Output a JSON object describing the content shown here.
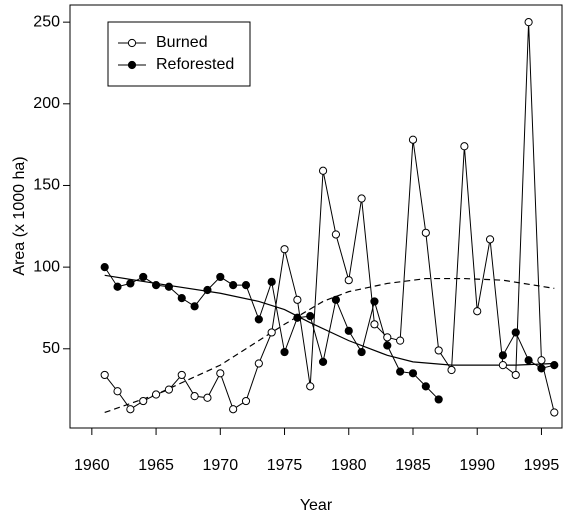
{
  "chart_data": {
    "type": "line",
    "x_label": "Year",
    "y_label": "Area (x 1000 ha)",
    "x": [
      1961,
      1962,
      1963,
      1964,
      1965,
      1966,
      1967,
      1968,
      1969,
      1970,
      1971,
      1972,
      1973,
      1974,
      1975,
      1976,
      1977,
      1978,
      1979,
      1980,
      1981,
      1982,
      1983,
      1984,
      1985,
      1986,
      1987,
      1988,
      1989,
      1990,
      1991,
      1992,
      1993,
      1994,
      1995,
      1996
    ],
    "series": [
      {
        "name": "Burned",
        "color": "#000000",
        "marker": "open",
        "values": [
          34,
          24,
          13,
          18,
          22,
          25,
          34,
          21,
          20,
          35,
          13,
          18,
          41,
          60,
          111,
          80,
          27,
          159,
          120,
          92,
          142,
          65,
          57,
          55,
          178,
          121,
          49,
          37,
          174,
          73,
          117,
          40,
          34,
          250,
          43,
          11
        ]
      },
      {
        "name": "Reforested",
        "color": "#000000",
        "marker": "filled",
        "values": [
          100,
          88,
          90,
          94,
          89,
          88,
          81,
          76,
          86,
          94,
          89,
          89,
          68,
          91,
          48,
          69,
          70,
          42,
          80,
          61,
          48,
          79,
          52,
          36,
          35,
          27,
          19,
          null,
          null,
          null,
          null,
          46,
          60,
          43,
          38,
          40
        ]
      }
    ],
    "trends": [
      {
        "linestyle": "solid",
        "color": "#000000",
        "x": [
          1961,
          1965,
          1970,
          1973,
          1975,
          1977,
          1980,
          1983,
          1985,
          1988,
          1990,
          1993,
          1996
        ],
        "values": [
          95,
          90,
          84,
          79,
          74,
          66,
          55,
          46,
          42,
          40,
          40,
          40,
          41
        ]
      },
      {
        "linestyle": "dashed",
        "color": "#000000",
        "x": [
          1961,
          1965,
          1970,
          1975,
          1978,
          1980,
          1983,
          1986,
          1989,
          1992,
          1996
        ],
        "values": [
          11,
          22,
          40,
          65,
          79,
          85,
          90,
          93,
          93,
          92,
          87
        ]
      }
    ],
    "xlim": [
      1958.3,
      1996.6
    ],
    "ylim": [
      1.5,
      260.5
    ],
    "xticks": [
      1960,
      1965,
      1970,
      1975,
      1980,
      1985,
      1990,
      1995
    ],
    "yticks": [
      50,
      100,
      150,
      200,
      250
    ],
    "legend": "top-left"
  }
}
